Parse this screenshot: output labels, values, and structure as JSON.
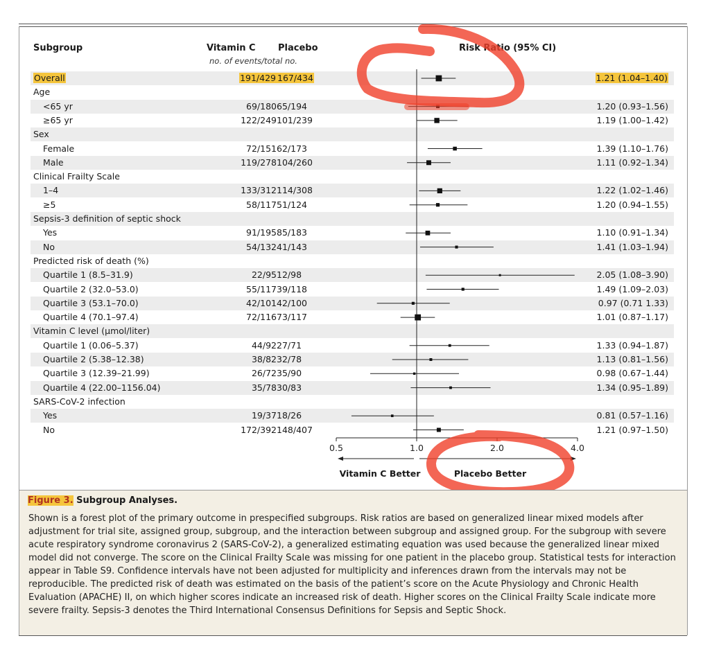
{
  "headers": {
    "subgroup": "Subgroup",
    "vitamin_c": "Vitamin C",
    "placebo": "Placebo",
    "events_note": "no. of events/total no.",
    "risk_ratio": "Risk Ratio (95% CI)"
  },
  "rows": [
    {
      "label": "Overall",
      "vc": "191/429",
      "pl": "167/434",
      "rr": "1.21 (1.04–1.40)",
      "indent": false,
      "highlight": true
    },
    {
      "label": "Age",
      "vc": "",
      "pl": "",
      "rr": "",
      "indent": false
    },
    {
      "label": "<65 yr",
      "vc": "69/180",
      "pl": "65/194",
      "rr": "1.20 (0.93–1.56)",
      "indent": true
    },
    {
      "label": "≥65 yr",
      "vc": "122/249",
      "pl": "101/239",
      "rr": "1.19 (1.00–1.42)",
      "indent": true
    },
    {
      "label": "Sex",
      "vc": "",
      "pl": "",
      "rr": "",
      "indent": false
    },
    {
      "label": "Female",
      "vc": "72/151",
      "pl": "62/173",
      "rr": "1.39 (1.10–1.76)",
      "indent": true
    },
    {
      "label": "Male",
      "vc": "119/278",
      "pl": "104/260",
      "rr": "1.11 (0.92–1.34)",
      "indent": true
    },
    {
      "label": "Clinical Frailty Scale",
      "vc": "",
      "pl": "",
      "rr": "",
      "indent": false
    },
    {
      "label": "1–4",
      "vc": "133/312",
      "pl": "114/308",
      "rr": "1.22 (1.02–1.46)",
      "indent": true
    },
    {
      "label": "≥5",
      "vc": "58/117",
      "pl": "51/124",
      "rr": "1.20 (0.94–1.55)",
      "indent": true
    },
    {
      "label": "Sepsis-3 definition of septic shock",
      "vc": "",
      "pl": "",
      "rr": "",
      "indent": false
    },
    {
      "label": "Yes",
      "vc": "91/195",
      "pl": "85/183",
      "rr": "1.10 (0.91–1.34)",
      "indent": true
    },
    {
      "label": "No",
      "vc": "54/132",
      "pl": "41/143",
      "rr": "1.41 (1.03–1.94)",
      "indent": true
    },
    {
      "label": "Predicted risk of death (%)",
      "vc": "",
      "pl": "",
      "rr": "",
      "indent": false
    },
    {
      "label": "Quartile 1 (8.5–31.9)",
      "vc": "22/95",
      "pl": "12/98",
      "rr": "2.05 (1.08–3.90)",
      "indent": true
    },
    {
      "label": "Quartile 2 (32.0–53.0)",
      "vc": "55/117",
      "pl": "39/118",
      "rr": "1.49 (1.09–2.03)",
      "indent": true
    },
    {
      "label": "Quartile 3 (53.1–70.0)",
      "vc": "42/101",
      "pl": "42/100",
      "rr": "0.97 (0.71  1.33)",
      "indent": true
    },
    {
      "label": "Quartile 4 (70.1–97.4)",
      "vc": "72/116",
      "pl": "73/117",
      "rr": "1.01 (0.87–1.17)",
      "indent": true
    },
    {
      "label": "Vitamin C level (μmol/liter)",
      "vc": "",
      "pl": "",
      "rr": "",
      "indent": false
    },
    {
      "label": "Quartile 1 (0.06–5.37)",
      "vc": "44/92",
      "pl": "27/71",
      "rr": "1.33 (0.94–1.87)",
      "indent": true
    },
    {
      "label": "Quartile 2 (5.38–12.38)",
      "vc": "38/82",
      "pl": "32/78",
      "rr": "1.13 (0.81–1.56)",
      "indent": true
    },
    {
      "label": "Quartile 3 (12.39–21.99)",
      "vc": "26/72",
      "pl": "35/90",
      "rr": "0.98 (0.67–1.44)",
      "indent": true
    },
    {
      "label": "Quartile 4 (22.00–1156.04)",
      "vc": "35/78",
      "pl": "30/83",
      "rr": "1.34 (0.95–1.89)",
      "indent": true
    },
    {
      "label": "SARS-CoV-2 infection",
      "vc": "",
      "pl": "",
      "rr": "",
      "indent": false
    },
    {
      "label": "Yes",
      "vc": "19/37",
      "pl": "18/26",
      "rr": "0.81 (0.57–1.16)",
      "indent": true
    },
    {
      "label": "No",
      "vc": "172/392",
      "pl": "148/407",
      "rr": "1.21 (0.97–1.50)",
      "indent": true
    }
  ],
  "chart_data": {
    "type": "forest",
    "x_scale": "log",
    "x_ticks": [
      0.5,
      1.0,
      2.0,
      4.0
    ],
    "x_tick_labels": [
      "0.5",
      "1.0",
      "2.0",
      "4.0"
    ],
    "xlim": [
      0.5,
      4.0
    ],
    "reference_line": 1.0,
    "left_label": "Vitamin C Better",
    "right_label": "Placebo Better",
    "estimates": [
      {
        "row": 0,
        "rr": 1.21,
        "lo": 1.04,
        "hi": 1.4
      },
      {
        "row": 2,
        "rr": 1.2,
        "lo": 0.93,
        "hi": 1.56
      },
      {
        "row": 3,
        "rr": 1.19,
        "lo": 1.0,
        "hi": 1.42
      },
      {
        "row": 5,
        "rr": 1.39,
        "lo": 1.1,
        "hi": 1.76
      },
      {
        "row": 6,
        "rr": 1.11,
        "lo": 0.92,
        "hi": 1.34
      },
      {
        "row": 8,
        "rr": 1.22,
        "lo": 1.02,
        "hi": 1.46
      },
      {
        "row": 9,
        "rr": 1.2,
        "lo": 0.94,
        "hi": 1.55
      },
      {
        "row": 11,
        "rr": 1.1,
        "lo": 0.91,
        "hi": 1.34
      },
      {
        "row": 12,
        "rr": 1.41,
        "lo": 1.03,
        "hi": 1.94
      },
      {
        "row": 14,
        "rr": 2.05,
        "lo": 1.08,
        "hi": 3.9
      },
      {
        "row": 15,
        "rr": 1.49,
        "lo": 1.09,
        "hi": 2.03
      },
      {
        "row": 16,
        "rr": 0.97,
        "lo": 0.71,
        "hi": 1.33
      },
      {
        "row": 17,
        "rr": 1.01,
        "lo": 0.87,
        "hi": 1.17
      },
      {
        "row": 19,
        "rr": 1.33,
        "lo": 0.94,
        "hi": 1.87
      },
      {
        "row": 20,
        "rr": 1.13,
        "lo": 0.81,
        "hi": 1.56
      },
      {
        "row": 21,
        "rr": 0.98,
        "lo": 0.67,
        "hi": 1.44
      },
      {
        "row": 22,
        "rr": 1.34,
        "lo": 0.95,
        "hi": 1.89
      },
      {
        "row": 24,
        "rr": 0.81,
        "lo": 0.57,
        "hi": 1.16
      },
      {
        "row": 25,
        "rr": 1.21,
        "lo": 0.97,
        "hi": 1.5
      }
    ]
  },
  "figure": {
    "number": "Figure 3.",
    "title": "Subgroup Analyses.",
    "caption": "Shown is a forest plot of the primary outcome in prespecified subgroups. Risk ratios are based on generalized linear mixed models after adjustment for trial site, assigned group, subgroup, and the interaction between subgroup and assigned group. For the subgroup with severe acute respiratory syndrome coronavirus 2 (SARS-CoV-2), a generalized estimating equation was used because the generalized linear mixed model did not converge. The score on the Clinical Frailty Scale was missing for one patient in the placebo group. Statistical tests for interaction appear in Table S9. Confidence intervals have not been adjusted for multiplicity and inferences drawn from the intervals may not be reproducible. The predicted risk of death was estimated on the basis of the patient’s score on the Acute Physiology and Chronic Health Evaluation (APACHE) II, on which higher scores indicate an increased risk of death. Higher scores on the Clinical Frailty Scale indicate more severe frailty. Sepsis-3 denotes the Third International Consensus Definitions for Sepsis and Septic Shock."
  },
  "colors": {
    "highlight": "#f5c53c",
    "annotation": "#f0402a",
    "figure_number": "#b03220",
    "caption_bg": "#f3efe4"
  }
}
